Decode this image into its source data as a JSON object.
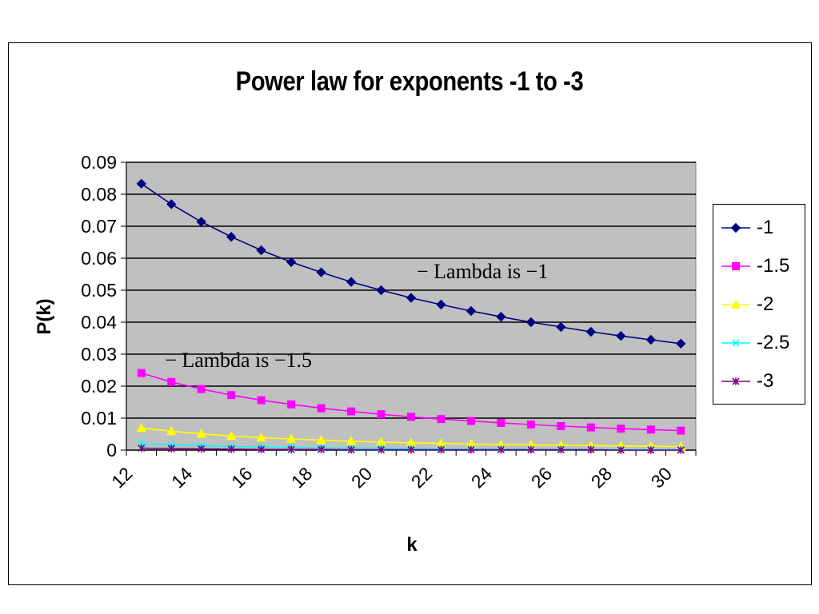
{
  "chart_data": {
    "type": "line",
    "title": "Power law for exponents -1 to -3",
    "xlabel": "k",
    "ylabel": "P(k)",
    "ylim": [
      0,
      0.09
    ],
    "yticks": [
      "0",
      "0.01",
      "0.02",
      "0.03",
      "0.04",
      "0.05",
      "0.06",
      "0.07",
      "0.08",
      "0.09"
    ],
    "xtick_labels": [
      "12",
      "14",
      "16",
      "18",
      "20",
      "22",
      "24",
      "26",
      "28",
      "30"
    ],
    "x": [
      12,
      13,
      14,
      15,
      16,
      17,
      18,
      19,
      20,
      21,
      22,
      23,
      24,
      25,
      26,
      27,
      28,
      29,
      30
    ],
    "grid": true,
    "plot_background": "#c0c0c0",
    "legend_position": "right",
    "series": [
      {
        "name": "-1",
        "color": "#000080",
        "marker": "diamond",
        "values": [
          0.0833,
          0.0769,
          0.0714,
          0.0667,
          0.0625,
          0.0588,
          0.0556,
          0.0526,
          0.05,
          0.0476,
          0.0455,
          0.0435,
          0.0417,
          0.04,
          0.0385,
          0.037,
          0.0357,
          0.0345,
          0.0333
        ]
      },
      {
        "name": "-1.5",
        "color": "#ff00ff",
        "marker": "square",
        "values": [
          0.0241,
          0.0213,
          0.0191,
          0.0172,
          0.0156,
          0.0143,
          0.0131,
          0.0121,
          0.0112,
          0.0104,
          0.0097,
          0.0091,
          0.0085,
          0.008,
          0.0075,
          0.0071,
          0.0067,
          0.0064,
          0.0061
        ]
      },
      {
        "name": "-2",
        "color": "#ffff00",
        "marker": "triangle",
        "values": [
          0.0069,
          0.0059,
          0.0051,
          0.0044,
          0.0039,
          0.0035,
          0.0031,
          0.0028,
          0.0025,
          0.0023,
          0.0021,
          0.0019,
          0.0017,
          0.0016,
          0.0015,
          0.0014,
          0.0013,
          0.0012,
          0.0011
        ]
      },
      {
        "name": "-2.5",
        "color": "#00ffff",
        "marker": "x",
        "values": [
          0.002,
          0.0016,
          0.0014,
          0.0011,
          0.001,
          0.0008,
          0.0007,
          0.0006,
          0.0006,
          0.0005,
          0.0004,
          0.0004,
          0.0004,
          0.0003,
          0.0003,
          0.0003,
          0.0002,
          0.0002,
          0.0002
        ]
      },
      {
        "name": "-3",
        "color": "#800080",
        "marker": "star",
        "values": [
          0.0006,
          0.0005,
          0.0004,
          0.0003,
          0.0002,
          0.0002,
          0.0002,
          0.0001,
          0.0001,
          0.0001,
          0.0001,
          0.0001,
          0.0001,
          0.0001,
          0.0001,
          0.0001,
          0,
          0,
          0
        ]
      }
    ],
    "annotations": [
      {
        "text": "− Lambda is −1",
        "x": 21.4,
        "y": 0.0555
      },
      {
        "text": "− Lambda is −1.5",
        "x": 13,
        "y": 0.0278
      }
    ]
  }
}
